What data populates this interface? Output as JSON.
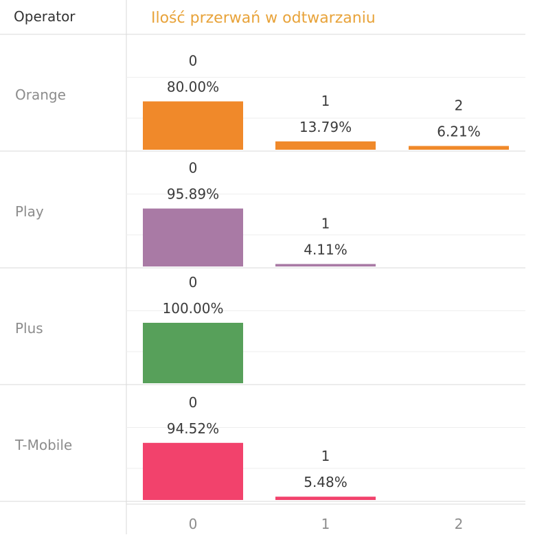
{
  "header": {
    "dimension_label": "Operator",
    "title": "Ilość przerwań w odtwarzaniu",
    "title_color": "#E8A33A"
  },
  "chart_data": {
    "type": "bar",
    "layout": "small-multiples-by-row",
    "row_dimension": "Operator",
    "categories": [
      "0",
      "1",
      "2"
    ],
    "value_unit": "%",
    "ylim": [
      0,
      100
    ],
    "grid": true,
    "rows": [
      {
        "name": "Orange",
        "color": "#F0892A",
        "bars": [
          {
            "category": "0",
            "value": 80.0,
            "label": "80.00%"
          },
          {
            "category": "1",
            "value": 13.79,
            "label": "13.79%"
          },
          {
            "category": "2",
            "value": 6.21,
            "label": "6.21%"
          }
        ]
      },
      {
        "name": "Play",
        "color": "#A97AA5",
        "bars": [
          {
            "category": "0",
            "value": 95.89,
            "label": "95.89%"
          },
          {
            "category": "1",
            "value": 4.11,
            "label": "4.11%"
          }
        ]
      },
      {
        "name": "Plus",
        "color": "#57A05A",
        "bars": [
          {
            "category": "0",
            "value": 100.0,
            "label": "100.00%"
          }
        ]
      },
      {
        "name": "T-Mobile",
        "color": "#F2426C",
        "bars": [
          {
            "category": "0",
            "value": 94.52,
            "label": "94.52%"
          },
          {
            "category": "1",
            "value": 5.48,
            "label": "5.48%"
          }
        ]
      }
    ]
  }
}
